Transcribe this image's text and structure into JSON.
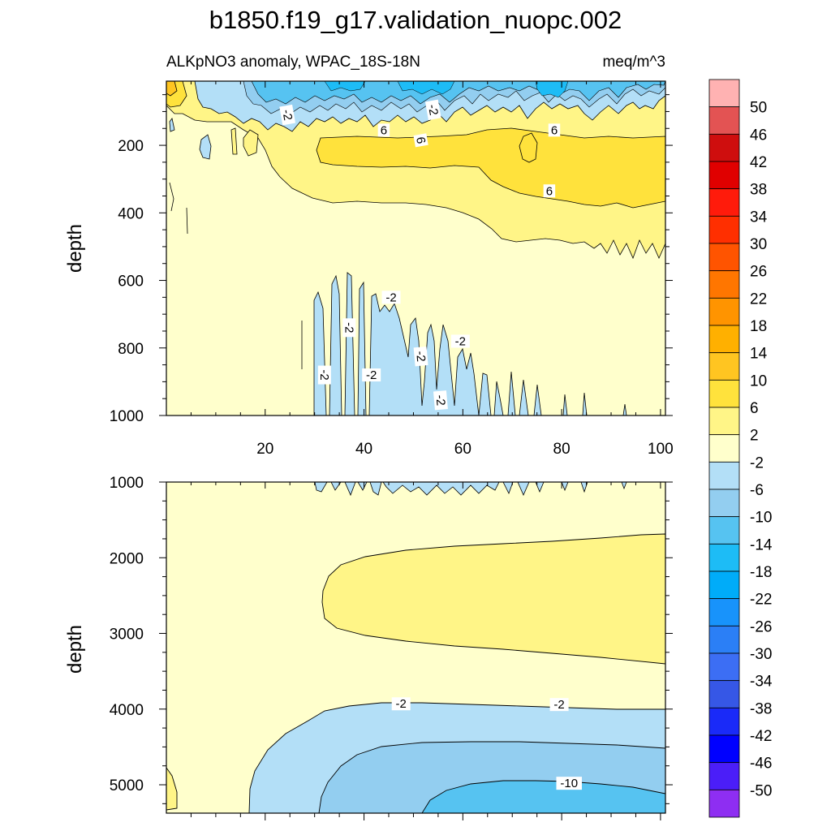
{
  "figure": {
    "title": "b1850.f19_g17.validation_nuopc.002",
    "subtitle_left": "ALKpNO3 anomaly, WPAC_18S-18N",
    "subtitle_right": "meq/m^3"
  },
  "chart_data": [
    {
      "type": "heatmap",
      "panel": "upper",
      "title": "ALKpNO3 anomaly, WPAC_18S-18N",
      "units": "meq/m^3",
      "xlabel": "",
      "ylabel": "depth",
      "xlim": [
        0,
        101
      ],
      "ylim": [
        1000,
        10
      ],
      "xticks": [
        20,
        40,
        60,
        80,
        100
      ],
      "yticks": [
        200,
        400,
        600,
        800,
        1000
      ],
      "contour_labels": [
        {
          "text": "-2",
          "x": 24.5,
          "y": 110,
          "rotate": 80
        },
        {
          "text": "6",
          "x": 44,
          "y": 155,
          "rotate": 0
        },
        {
          "text": "-2",
          "x": 54,
          "y": 95,
          "rotate": 80
        },
        {
          "text": "6",
          "x": 51.5,
          "y": 185,
          "rotate": 80
        },
        {
          "text": "6",
          "x": 78.5,
          "y": 155,
          "rotate": 0
        },
        {
          "text": "6",
          "x": 77.5,
          "y": 335,
          "rotate": 0
        },
        {
          "text": "-2",
          "x": 45.5,
          "y": 650,
          "rotate": 0
        },
        {
          "text": "-2",
          "x": 37,
          "y": 740,
          "rotate": 90
        },
        {
          "text": "-2",
          "x": 59.5,
          "y": 780,
          "rotate": 0
        },
        {
          "text": "-2",
          "x": 51.5,
          "y": 825,
          "rotate": 85
        },
        {
          "text": "-2",
          "x": 32,
          "y": 880,
          "rotate": 90
        },
        {
          "text": "-2",
          "x": 41.5,
          "y": 880,
          "rotate": 0
        },
        {
          "text": "-2",
          "x": 55.5,
          "y": 955,
          "rotate": 85
        }
      ]
    },
    {
      "type": "heatmap",
      "panel": "lower",
      "title": "",
      "xlabel": "",
      "ylabel": "depth",
      "xlim": [
        0,
        101
      ],
      "ylim": [
        5375,
        1000
      ],
      "yticks": [
        1000,
        2000,
        3000,
        4000,
        5000
      ],
      "contour_labels": [
        {
          "text": "-2",
          "x": 47.5,
          "y": 3930,
          "rotate": 0
        },
        {
          "text": "-2",
          "x": 79.5,
          "y": 3940,
          "rotate": 0
        },
        {
          "text": "-10",
          "x": 81.5,
          "y": 4980,
          "rotate": 0
        }
      ]
    }
  ],
  "colorbar": {
    "levels": [
      "50",
      "46",
      "42",
      "38",
      "34",
      "30",
      "26",
      "22",
      "18",
      "14",
      "10",
      "6",
      "2",
      "-2",
      "-6",
      "-10",
      "-14",
      "-18",
      "-22",
      "-26",
      "-30",
      "-34",
      "-38",
      "-42",
      "-46",
      "-50"
    ],
    "colors": [
      "#ffb2b2",
      "#e35353",
      "#cf0e0e",
      "#e00000",
      "#ff1b0b",
      "#ff2f00",
      "#ff5400",
      "#ff7600",
      "#ff9400",
      "#ffb000",
      "#ffc521",
      "#ffe23c",
      "#fff587",
      "#ffffcc",
      "#b3dff7",
      "#93cef0",
      "#56c3f1",
      "#1dbcf6",
      "#00acf9",
      "#1893fb",
      "#2b7ff6",
      "#3c6ef4",
      "#3657e6",
      "#1a2af8",
      "#0000ff",
      "#4b1ef8",
      "#8e2ef2"
    ]
  },
  "palette": {
    "neg2": "#ffffcc",
    "pos2": "#fff587",
    "pos6": "#ffe23c",
    "pos10": "#ffc521",
    "pos14": "#ffb000",
    "neg6": "#b3dff7",
    "neg10": "#93cef0",
    "neg14": "#56c3f1",
    "neg18": "#1dbcf6"
  }
}
